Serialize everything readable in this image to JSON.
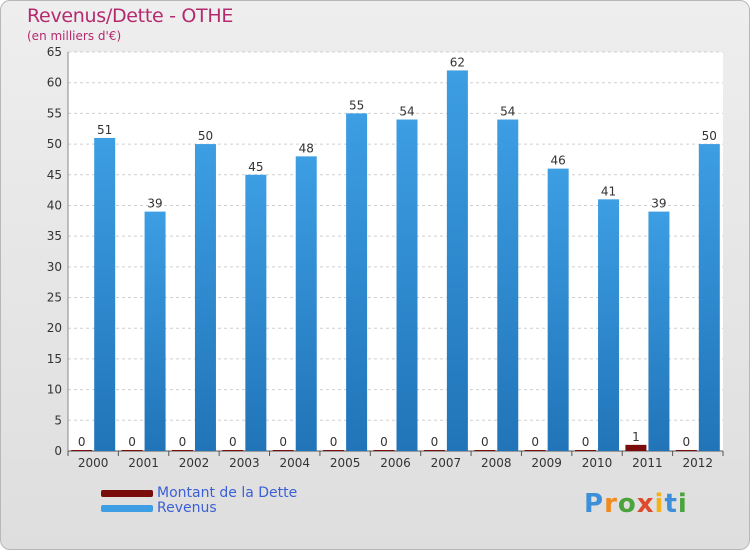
{
  "colors": {
    "revenus": "#3d9ee3",
    "revenus_dark": "#2174b8",
    "dette": "#7a0c0c",
    "title": "#b52a6e",
    "legend_text": "#3b5fd6"
  },
  "chart_data": {
    "type": "bar",
    "title": "Revenus/Dette - OTHE",
    "subtitle": "(en milliers d'€)",
    "categories": [
      "2000",
      "2001",
      "2002",
      "2003",
      "2004",
      "2005",
      "2006",
      "2007",
      "2008",
      "2009",
      "2010",
      "2011",
      "2012"
    ],
    "series": [
      {
        "name": "Montant de la Dette",
        "values": [
          0,
          0,
          0,
          0,
          0,
          0,
          0,
          0,
          0,
          0,
          0,
          1,
          0
        ]
      },
      {
        "name": "Revenus",
        "values": [
          51,
          39,
          50,
          45,
          48,
          55,
          54,
          62,
          54,
          46,
          41,
          39,
          50
        ]
      }
    ],
    "yticks": [
      0,
      5,
      10,
      15,
      20,
      25,
      30,
      35,
      40,
      45,
      50,
      55,
      60,
      65
    ],
    "ylim": [
      0,
      65
    ],
    "grid": true,
    "legend_position": "bottom-left"
  },
  "logo": {
    "letters": [
      "P",
      "r",
      "o",
      "x",
      "i",
      "t",
      "i"
    ],
    "colors": [
      "#3c8fd8",
      "#f08a1c",
      "#4aa33b",
      "#e04a2a",
      "#f2b21b",
      "#3c8fd8",
      "#4aa33b"
    ]
  }
}
